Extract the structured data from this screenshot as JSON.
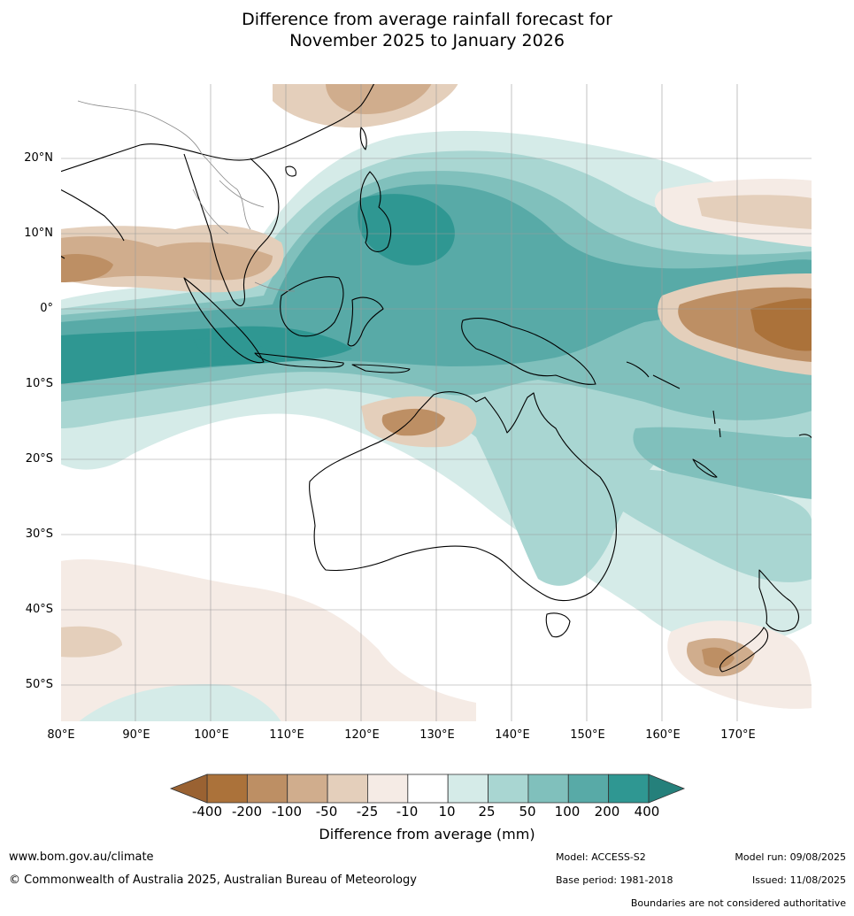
{
  "title": {
    "line1": "Difference from average rainfall forecast for",
    "line2": "November 2025 to January 2026"
  },
  "axes": {
    "lat_labels": [
      "20°N",
      "10°N",
      "0°",
      "10°S",
      "20°S",
      "30°S",
      "40°S",
      "50°S"
    ],
    "lon_labels": [
      "80°E",
      "90°E",
      "100°E",
      "110°E",
      "120°E",
      "130°E",
      "140°E",
      "150°E",
      "160°E",
      "170°E"
    ]
  },
  "legend": {
    "title": "Difference from average (mm)",
    "ticks": [
      "-400",
      "-200",
      "-100",
      "-50",
      "-25",
      "-10",
      "10",
      "25",
      "50",
      "100",
      "200",
      "400"
    ],
    "colors": {
      "below_min": "#9a6232",
      "bins": [
        "#ab723a",
        "#bd8f64",
        "#d0ad8d",
        "#e4cfbb",
        "#f5ebe5",
        "#ffffff",
        "#d5ebe8",
        "#a9d6d2",
        "#80c0bc",
        "#58aaa7",
        "#2f9792"
      ],
      "above_max": "#25807b"
    }
  },
  "footer": {
    "website": "www.bom.gov.au/climate",
    "copyright": "© Commonwealth of Australia 2025, Australian Bureau of Meteorology",
    "model": "Model: ACCESS-S2",
    "base_period": "Base period: 1981-2018",
    "model_run": "Model run: 09/08/2025",
    "issued": "Issued: 11/08/2025",
    "disclaimer": "Boundaries are not considered authoritative"
  }
}
